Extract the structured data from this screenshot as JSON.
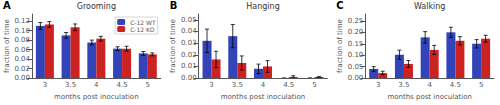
{
  "chart_data": [
    {
      "type": "bar",
      "annotation": "A",
      "title": "Grooming",
      "xlabel": "months post inoculation",
      "ylabel": "fraction of time",
      "categories": [
        "3",
        "3.5",
        "4",
        "4.5",
        "5"
      ],
      "series": [
        {
          "name": "C-12 WT",
          "color": "#3344BB",
          "values": [
            0.11,
            0.09,
            0.075,
            0.062,
            0.052
          ],
          "errors": [
            0.007,
            0.006,
            0.005,
            0.004,
            0.004
          ]
        },
        {
          "name": "C-12 KO",
          "color": "#CC2222",
          "values": [
            0.113,
            0.107,
            0.083,
            0.062,
            0.05
          ],
          "errors": [
            0.006,
            0.007,
            0.005,
            0.005,
            0.003
          ]
        }
      ],
      "ylim": [
        0,
        0.135
      ],
      "yticks": [
        {
          "value": 0,
          "label": "0.00"
        },
        {
          "value": 0.02,
          "label": "0.02"
        },
        {
          "value": 0.04,
          "label": "0.04"
        },
        {
          "value": 0.06,
          "label": "0.06"
        },
        {
          "value": 0.08,
          "label": "0.08"
        },
        {
          "value": 0.1,
          "label": "0.10"
        },
        {
          "value": 0.12,
          "label": "0.12"
        }
      ],
      "grid": false,
      "legend": "upper right"
    },
    {
      "type": "bar",
      "annotation": "B",
      "title": "Hanging",
      "xlabel": "months post inoculation",
      "ylabel": "fraction of time",
      "categories": [
        "3",
        "3.5",
        "4",
        "4.5",
        "5"
      ],
      "series": [
        {
          "name": "C-12 WT",
          "color": "#3344BB",
          "values": [
            0.032,
            0.036,
            0.008,
            0.0,
            0.0
          ],
          "errors": [
            0.01,
            0.01,
            0.004,
            0.0,
            0.0
          ]
        },
        {
          "name": "C-12 KO",
          "color": "#CC2222",
          "values": [
            0.016,
            0.013,
            0.01,
            0.001,
            0.001
          ],
          "errors": [
            0.007,
            0.006,
            0.005,
            0.001,
            0.0
          ]
        }
      ],
      "ylim": [
        0,
        0.055
      ],
      "yticks": [
        {
          "value": 0,
          "label": "0.00"
        },
        {
          "value": 0.01,
          "label": "0.01"
        },
        {
          "value": 0.02,
          "label": "0.02"
        },
        {
          "value": 0.03,
          "label": "0.03"
        },
        {
          "value": 0.04,
          "label": "0.04"
        },
        {
          "value": 0.05,
          "label": "0.05"
        }
      ],
      "grid": false
    },
    {
      "type": "bar",
      "annotation": "C",
      "title": "Walking",
      "xlabel": "months post inoculation",
      "ylabel": "fraction of time",
      "categories": [
        "3",
        "3.5",
        "4",
        "4.5",
        "5"
      ],
      "series": [
        {
          "name": "C-12 WT",
          "color": "#3344BB",
          "values": [
            0.04,
            0.102,
            0.178,
            0.2,
            0.15
          ],
          "errors": [
            0.01,
            0.02,
            0.025,
            0.022,
            0.018
          ]
        },
        {
          "name": "C-12 KO",
          "color": "#CC2222",
          "values": [
            0.022,
            0.062,
            0.123,
            0.163,
            0.172
          ],
          "errors": [
            0.008,
            0.015,
            0.02,
            0.018,
            0.015
          ]
        }
      ],
      "ylim": [
        0,
        0.28
      ],
      "yticks": [
        {
          "value": 0,
          "label": "0.00"
        },
        {
          "value": 0.05,
          "label": "0.05"
        },
        {
          "value": 0.1,
          "label": "0.10"
        },
        {
          "value": 0.15,
          "label": "0.15"
        },
        {
          "value": 0.2,
          "label": "0.20"
        },
        {
          "value": 0.25,
          "label": "0.25"
        }
      ],
      "grid": false
    }
  ]
}
